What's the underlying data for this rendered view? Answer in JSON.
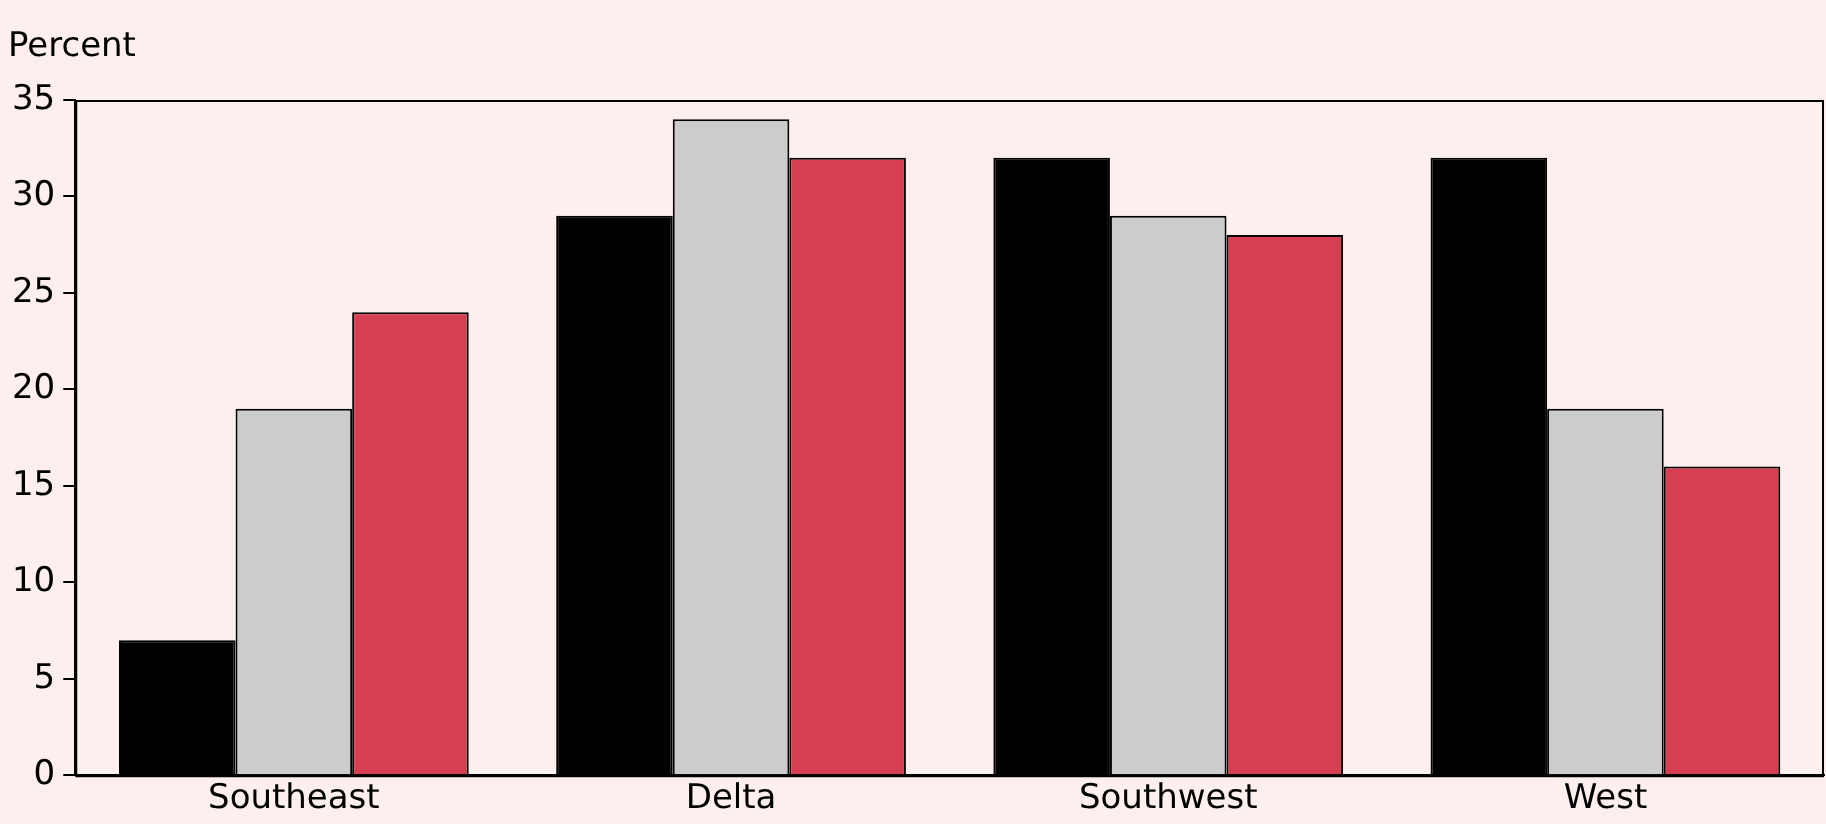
{
  "chart_data": {
    "type": "bar",
    "ylabel": "Percent",
    "categories": [
      "Southeast",
      "Delta",
      "Southwest",
      "West"
    ],
    "series": [
      {
        "color": "#000000",
        "values": [
          7,
          29,
          32,
          32
        ]
      },
      {
        "color": "#cccccc",
        "values": [
          19,
          34,
          29,
          19
        ]
      },
      {
        "color": "#d63f51",
        "values": [
          24,
          32,
          28,
          16
        ]
      }
    ],
    "ylim": [
      0,
      35
    ],
    "yticks": [
      0,
      5,
      10,
      15,
      20,
      25,
      30,
      35
    ],
    "grid": false,
    "legend": false
  }
}
